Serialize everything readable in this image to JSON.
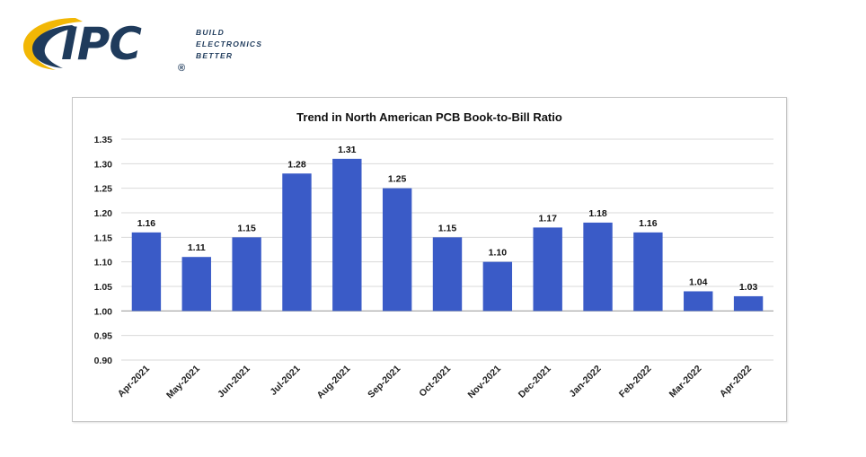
{
  "logo": {
    "name": "IPC",
    "registered": "®",
    "tagline": [
      "BUILD",
      "ELECTRONICS",
      "BETTER"
    ],
    "colors": {
      "navy": "#1f3b5c",
      "gold": "#f2b705"
    }
  },
  "chart_data": {
    "type": "bar",
    "title": "Trend in North American PCB Book-to-Bill Ratio",
    "xlabel": "",
    "ylabel": "",
    "categories": [
      "Apr-2021",
      "May-2021",
      "Jun-2021",
      "Jul-2021",
      "Aug-2021",
      "Sep-2021",
      "Oct-2021",
      "Nov-2021",
      "Dec-2021",
      "Jan-2022",
      "Feb-2022",
      "Mar-2022",
      "Apr-2022"
    ],
    "values": [
      1.16,
      1.11,
      1.15,
      1.28,
      1.31,
      1.25,
      1.15,
      1.1,
      1.17,
      1.18,
      1.16,
      1.04,
      1.03
    ],
    "value_labels": [
      "1.16",
      "1.11",
      "1.15",
      "1.28",
      "1.31",
      "1.25",
      "1.15",
      "1.10",
      "1.17",
      "1.18",
      "1.16",
      "1.04",
      "1.03"
    ],
    "ylim": [
      0.9,
      1.35
    ],
    "baseline": 1.0,
    "yticks": [
      "1.35",
      "1.30",
      "1.25",
      "1.20",
      "1.15",
      "1.10",
      "1.05",
      "1.00",
      "0.95",
      "0.90"
    ],
    "ytick_values": [
      1.35,
      1.3,
      1.25,
      1.2,
      1.15,
      1.1,
      1.05,
      1.0,
      0.95,
      0.9
    ],
    "grid": true,
    "legend": "none",
    "bar_color": "#3a5bc7"
  }
}
